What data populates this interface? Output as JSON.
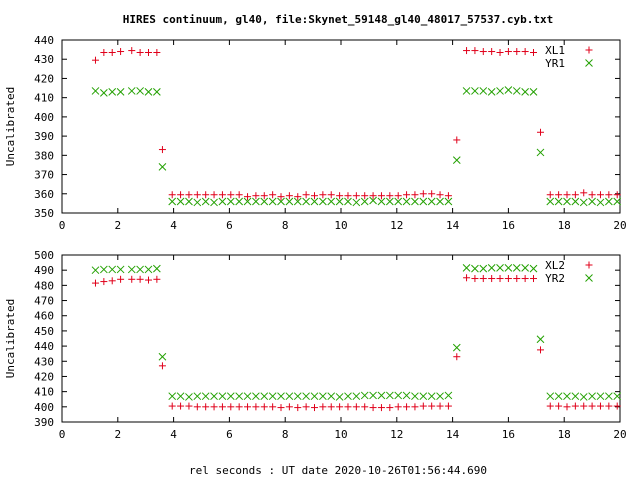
{
  "title": "HIRES continuum, gl40, file:Skynet_59148_gl40_48017_57537.cyb.txt",
  "xlabel": "rel seconds : UT date 2020-10-26T01:56:44.690",
  "colors": {
    "red": "#e0001a",
    "green": "#22a000",
    "frame": "#000000"
  },
  "chart_data": [
    {
      "type": "scatter",
      "title": "HIRES continuum, gl40, file:Skynet_59148_gl40_48017_57537.cyb.txt",
      "xlabel": "",
      "ylabel": "Uncalibrated",
      "xlim": [
        0,
        20
      ],
      "ylim": [
        350,
        440
      ],
      "xticks": [
        0,
        2,
        4,
        6,
        8,
        10,
        12,
        14,
        16,
        18,
        20
      ],
      "yticks": [
        350,
        360,
        370,
        380,
        390,
        400,
        410,
        420,
        430,
        440
      ],
      "grid": false,
      "legend_position": "top-right",
      "series": [
        {
          "name": "XL1",
          "marker": "plus",
          "color": "#e0001a",
          "x": [
            1.2,
            1.5,
            1.8,
            2.1,
            2.5,
            2.8,
            3.1,
            3.4,
            3.6,
            3.95,
            4.25,
            4.55,
            4.85,
            5.15,
            5.45,
            5.75,
            6.05,
            6.35,
            6.65,
            6.95,
            7.25,
            7.55,
            7.85,
            8.15,
            8.45,
            8.75,
            9.05,
            9.35,
            9.65,
            9.95,
            10.25,
            10.55,
            10.85,
            11.15,
            11.45,
            11.75,
            12.05,
            12.35,
            12.65,
            12.95,
            13.25,
            13.55,
            13.85,
            14.15,
            14.5,
            14.8,
            15.1,
            15.4,
            15.7,
            16.0,
            16.3,
            16.6,
            16.9,
            17.15,
            17.5,
            17.8,
            18.1,
            18.4,
            18.7,
            19.0,
            19.3,
            19.6,
            19.9
          ],
          "y": [
            429.5,
            433.5,
            433.5,
            434,
            434.5,
            433.5,
            433.5,
            433.5,
            383,
            359.5,
            359.5,
            359.5,
            359.5,
            359.5,
            359.5,
            359.5,
            359.5,
            359.5,
            358.5,
            359,
            359,
            359.5,
            358.5,
            359,
            358.5,
            359.5,
            359,
            359.5,
            359.5,
            359,
            359,
            359,
            359,
            359,
            359,
            359,
            359,
            359.5,
            359.5,
            360,
            360,
            359.5,
            359,
            388,
            434.5,
            434.5,
            434,
            434,
            433.5,
            434,
            434,
            434,
            433.5,
            392,
            359.5,
            359.5,
            359.5,
            359.5,
            360.5,
            359.5,
            359.5,
            359.5,
            359.5
          ]
        },
        {
          "name": "YR1",
          "marker": "x",
          "color": "#22a000",
          "x": [
            1.2,
            1.5,
            1.8,
            2.1,
            2.5,
            2.8,
            3.1,
            3.4,
            3.6,
            3.95,
            4.25,
            4.55,
            4.85,
            5.15,
            5.45,
            5.75,
            6.05,
            6.35,
            6.65,
            6.95,
            7.25,
            7.55,
            7.85,
            8.15,
            8.45,
            8.75,
            9.05,
            9.35,
            9.65,
            9.95,
            10.25,
            10.55,
            10.85,
            11.15,
            11.45,
            11.75,
            12.05,
            12.35,
            12.65,
            12.95,
            13.25,
            13.55,
            13.85,
            14.15,
            14.5,
            14.8,
            15.1,
            15.4,
            15.7,
            16.0,
            16.3,
            16.6,
            16.9,
            17.15,
            17.5,
            17.8,
            18.1,
            18.4,
            18.7,
            19.0,
            19.3,
            19.6,
            19.9
          ],
          "y": [
            413.5,
            412.5,
            413,
            413,
            413.5,
            413.5,
            413,
            413,
            374,
            356,
            356,
            356,
            355.5,
            356,
            355.5,
            356,
            356,
            356,
            356,
            356,
            356,
            356,
            356,
            356,
            356,
            356,
            356,
            356,
            356,
            356,
            356,
            355.5,
            356,
            356.5,
            356,
            356,
            356,
            356,
            356,
            356,
            356,
            356,
            356,
            377.5,
            413.5,
            413.5,
            413.5,
            413,
            413.5,
            414,
            413.5,
            413,
            413,
            381.5,
            356,
            356,
            356,
            356,
            355.5,
            356,
            355.5,
            356,
            356
          ]
        }
      ]
    },
    {
      "type": "scatter",
      "title": "",
      "xlabel": "rel seconds : UT date 2020-10-26T01:56:44.690",
      "ylabel": "Uncalibrated",
      "xlim": [
        0,
        20
      ],
      "ylim": [
        390,
        500
      ],
      "xticks": [
        0,
        2,
        4,
        6,
        8,
        10,
        12,
        14,
        16,
        18,
        20
      ],
      "yticks": [
        390,
        400,
        410,
        420,
        430,
        440,
        450,
        460,
        470,
        480,
        490,
        500
      ],
      "grid": false,
      "legend_position": "top-right",
      "series": [
        {
          "name": "XL2",
          "marker": "plus",
          "color": "#e0001a",
          "x": [
            1.2,
            1.5,
            1.8,
            2.1,
            2.5,
            2.8,
            3.1,
            3.4,
            3.6,
            3.95,
            4.25,
            4.55,
            4.85,
            5.15,
            5.45,
            5.75,
            6.05,
            6.35,
            6.65,
            6.95,
            7.25,
            7.55,
            7.85,
            8.15,
            8.45,
            8.75,
            9.05,
            9.35,
            9.65,
            9.95,
            10.25,
            10.55,
            10.85,
            11.15,
            11.45,
            11.75,
            12.05,
            12.35,
            12.65,
            12.95,
            13.25,
            13.55,
            13.85,
            14.15,
            14.5,
            14.8,
            15.1,
            15.4,
            15.7,
            16.0,
            16.3,
            16.6,
            16.9,
            17.15,
            17.5,
            17.8,
            18.1,
            18.4,
            18.7,
            19.0,
            19.3,
            19.6,
            19.9
          ],
          "y": [
            481.5,
            482.5,
            483,
            484,
            484,
            484,
            483.5,
            484,
            427,
            400.5,
            400.5,
            400.5,
            400,
            400,
            400,
            400,
            400,
            400,
            400,
            400,
            400,
            400,
            399.5,
            400,
            399.5,
            400,
            399.5,
            400,
            400,
            400,
            400,
            400,
            400,
            399.5,
            399.5,
            399.5,
            400,
            400,
            400,
            400.5,
            400.5,
            400.5,
            400.5,
            433,
            485,
            484.5,
            484.5,
            484.5,
            484.5,
            484.5,
            484.5,
            484.5,
            484.5,
            437.5,
            400.5,
            400.5,
            400,
            400.5,
            400.5,
            400.5,
            400.5,
            400.5,
            400.5
          ]
        },
        {
          "name": "YR2",
          "marker": "x",
          "color": "#22a000",
          "x": [
            1.2,
            1.5,
            1.8,
            2.1,
            2.5,
            2.8,
            3.1,
            3.4,
            3.6,
            3.95,
            4.25,
            4.55,
            4.85,
            5.15,
            5.45,
            5.75,
            6.05,
            6.35,
            6.65,
            6.95,
            7.25,
            7.55,
            7.85,
            8.15,
            8.45,
            8.75,
            9.05,
            9.35,
            9.65,
            9.95,
            10.25,
            10.55,
            10.85,
            11.15,
            11.45,
            11.75,
            12.05,
            12.35,
            12.65,
            12.95,
            13.25,
            13.55,
            13.85,
            14.15,
            14.5,
            14.8,
            15.1,
            15.4,
            15.7,
            16.0,
            16.3,
            16.6,
            16.9,
            17.15,
            17.5,
            17.8,
            18.1,
            18.4,
            18.7,
            19.0,
            19.3,
            19.6,
            19.9
          ],
          "y": [
            490,
            490.5,
            490.5,
            490.5,
            490.5,
            490.5,
            490.5,
            491,
            433,
            407,
            407,
            406.5,
            407,
            407,
            407,
            407,
            407,
            407,
            407,
            407,
            407,
            407,
            407,
            407,
            407,
            407,
            407,
            407,
            407,
            406.5,
            407,
            407,
            407.5,
            407.5,
            407.5,
            407.5,
            407.5,
            407.5,
            407,
            407,
            407,
            407,
            407.5,
            439,
            491.5,
            491,
            491,
            491.5,
            491.5,
            491.5,
            491.5,
            491.5,
            491,
            444.5,
            407,
            407,
            407,
            407,
            406.5,
            407,
            407,
            407,
            407
          ]
        }
      ]
    }
  ]
}
